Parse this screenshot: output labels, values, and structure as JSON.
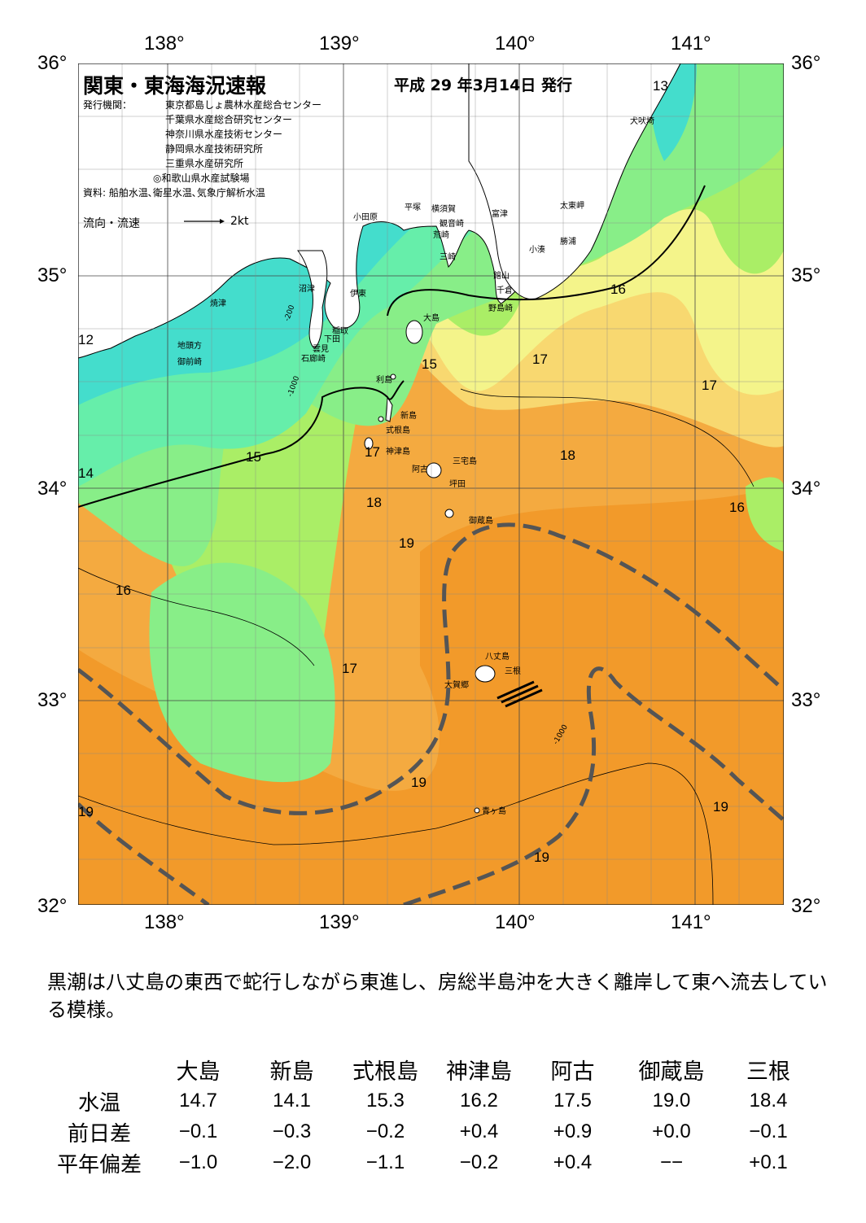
{
  "header": {
    "title": "関東・東海海況速報",
    "issue_date": "平成 29 年3月14日 発行",
    "publisher_label": "発行機関：",
    "publishers": [
      "東京都島しょ農林水産総合センター",
      "千葉県水産総合研究センター",
      "神奈川県水産技術センター",
      "静岡県水産技術研究所",
      "三重県水産研究所",
      "◎和歌山県水産試験場"
    ],
    "sources": "資料: 船舶水温､衛星水温､気象庁解析水温",
    "flow_legend": "流向・流速",
    "flow_unit": "2kt"
  },
  "axes": {
    "lon_labels": [
      "138°",
      "139°",
      "140°",
      "141°"
    ],
    "lat_labels": [
      "36°",
      "35°",
      "34°",
      "33°",
      "32°"
    ]
  },
  "places": [
    "犬吠埼",
    "太東岬",
    "勝浦",
    "小湊",
    "富津",
    "横須賀",
    "観音崎",
    "平塚",
    "荒崎",
    "三崎",
    "小田原",
    "館山",
    "千倉",
    "野島崎",
    "沼津",
    "伊東",
    "焼津",
    "稲取",
    "下田",
    "雲見",
    "石廊崎",
    "地頭方",
    "御前崎",
    "大島",
    "利島",
    "新島",
    "式根島",
    "神津島",
    "三宅島",
    "阿古",
    "坪田",
    "御蔵島",
    "八丈島",
    "三根",
    "大賀郷",
    "青ヶ島"
  ],
  "isotherms": [
    "13",
    "16",
    "17",
    "17",
    "15",
    "15",
    "17",
    "18",
    "16",
    "18",
    "19",
    "16",
    "17",
    "19",
    "19",
    "19",
    "19",
    "12",
    "14"
  ],
  "depth_labels": [
    "-200",
    "-1000"
  ],
  "colors": {
    "c12": "#33ccee",
    "c13": "#44ddcc",
    "c14": "#66eeaa",
    "c15": "#88ee88",
    "c16": "#aaee66",
    "c17": "#f4f48a",
    "c18": "#f8d870",
    "c19": "#f4aa40",
    "c20": "#f29a2a",
    "kuroshio": "#555555"
  },
  "description": "黒潮は八丈島の東西で蛇行しながら東進し、房総半島沖を大きく離岸して東へ流去している模様。",
  "table": {
    "stations": [
      "大島",
      "新島",
      "式根島",
      "神津島",
      "阿古",
      "御蔵島",
      "三根"
    ],
    "rows": [
      {
        "label": "水温",
        "values": [
          "14.7",
          "14.1",
          "15.3",
          "16.2",
          "17.5",
          "19.0",
          "18.4"
        ]
      },
      {
        "label": "前日差",
        "values": [
          "−0.1",
          "−0.3",
          "−0.2",
          "+0.4",
          "+0.9",
          "+0.0",
          "−0.1"
        ]
      },
      {
        "label": "平年偏差",
        "values": [
          "−1.0",
          "−2.0",
          "−1.1",
          "−0.2",
          "+0.4",
          "−−",
          "+0.1"
        ]
      }
    ]
  }
}
